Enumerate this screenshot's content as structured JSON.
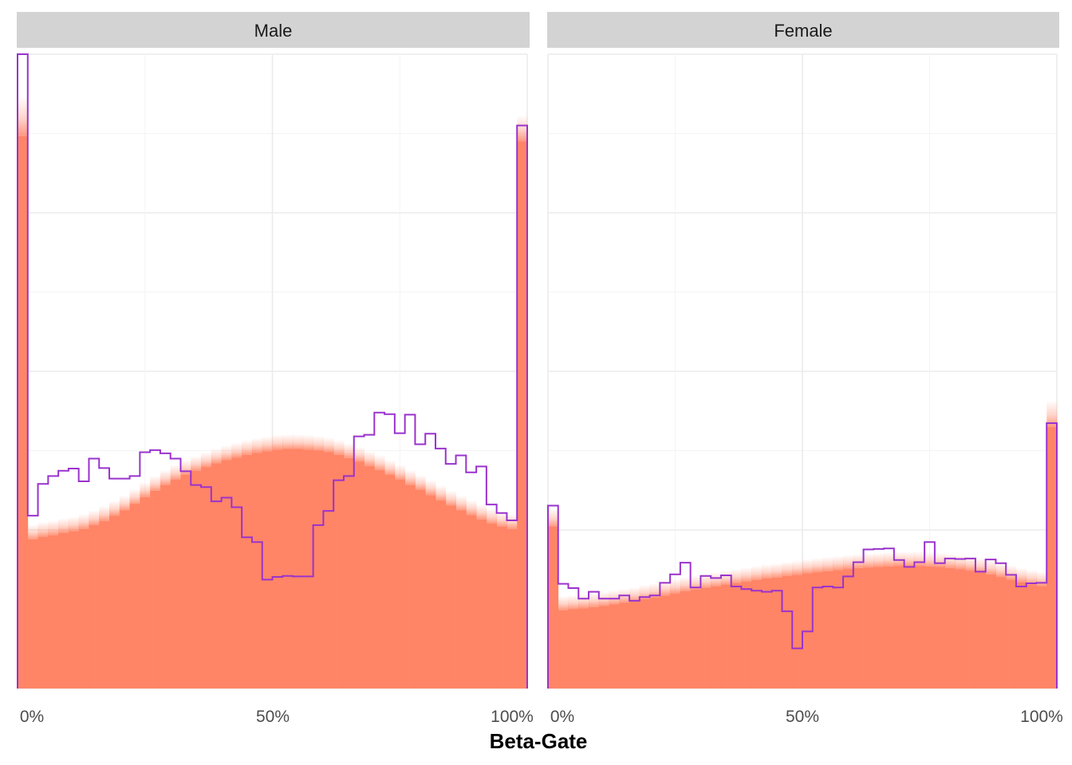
{
  "colors": {
    "strip_bg": "#d3d3d3",
    "grid_major": "#ebebeb",
    "grid_minor": "#f4f4f4",
    "band_fill": "#ff8566",
    "observed_line": "#9a32cd"
  },
  "chart_data": {
    "type": "area",
    "xlabel": "Beta-Gate",
    "ylabel": "",
    "x_tick_labels": [
      "0%",
      "50%",
      "100%"
    ],
    "xlim": [
      0,
      100
    ],
    "ylim": [
      0,
      0.12
    ],
    "grid": true,
    "legend": "none",
    "bins": 50,
    "bin_width": 2,
    "panels": [
      {
        "label": "Male",
        "observed": [
          0.12,
          0.0327,
          0.0387,
          0.0402,
          0.0412,
          0.0416,
          0.0392,
          0.0435,
          0.0417,
          0.0397,
          0.0397,
          0.0402,
          0.0447,
          0.0451,
          0.0445,
          0.0435,
          0.0411,
          0.0385,
          0.0381,
          0.0354,
          0.0361,
          0.0343,
          0.0286,
          0.0277,
          0.0206,
          0.0211,
          0.0213,
          0.0212,
          0.0212,
          0.0309,
          0.0336,
          0.0394,
          0.0402,
          0.0477,
          0.048,
          0.0522,
          0.0519,
          0.0483,
          0.0518,
          0.0462,
          0.0482,
          0.0454,
          0.0425,
          0.0441,
          0.0409,
          0.042,
          0.0348,
          0.0332,
          0.0318,
          0.1065
        ],
        "band_top": [
          0.112,
          0.031,
          0.0315,
          0.0318,
          0.0322,
          0.0325,
          0.033,
          0.0337,
          0.0345,
          0.0355,
          0.0365,
          0.0377,
          0.039,
          0.0402,
          0.0413,
          0.0423,
          0.0432,
          0.044,
          0.0447,
          0.0454,
          0.046,
          0.0465,
          0.047,
          0.0474,
          0.0477,
          0.048,
          0.0481,
          0.0481,
          0.048,
          0.0478,
          0.0475,
          0.047,
          0.0464,
          0.0457,
          0.0449,
          0.0441,
          0.0432,
          0.0423,
          0.0413,
          0.0404,
          0.0394,
          0.0384,
          0.0374,
          0.0365,
          0.0356,
          0.0348,
          0.034,
          0.0334,
          0.033,
          0.1085
        ],
        "band_mid": [
          0.1095,
          0.0296,
          0.0301,
          0.0304,
          0.0308,
          0.0311,
          0.0316,
          0.0323,
          0.0331,
          0.0341,
          0.0351,
          0.0363,
          0.0376,
          0.0388,
          0.0399,
          0.0409,
          0.0418,
          0.0426,
          0.0433,
          0.044,
          0.0446,
          0.0451,
          0.0456,
          0.046,
          0.0463,
          0.0466,
          0.0467,
          0.0467,
          0.0466,
          0.0464,
          0.0461,
          0.0456,
          0.045,
          0.0443,
          0.0435,
          0.0427,
          0.0418,
          0.0409,
          0.0399,
          0.039,
          0.038,
          0.037,
          0.036,
          0.0351,
          0.0342,
          0.0334,
          0.0326,
          0.032,
          0.0316,
          0.1065
        ],
        "band_bottom": [
          0.1045,
          0.0282,
          0.0287,
          0.029,
          0.0294,
          0.0297,
          0.0302,
          0.0309,
          0.0317,
          0.0327,
          0.0337,
          0.0349,
          0.0362,
          0.0374,
          0.0385,
          0.0395,
          0.0404,
          0.0412,
          0.0419,
          0.0426,
          0.0432,
          0.0437,
          0.0442,
          0.0446,
          0.0449,
          0.0452,
          0.0453,
          0.0453,
          0.0452,
          0.045,
          0.0447,
          0.0442,
          0.0436,
          0.0429,
          0.0421,
          0.0413,
          0.0404,
          0.0395,
          0.0385,
          0.0376,
          0.0366,
          0.0356,
          0.0346,
          0.0337,
          0.0328,
          0.032,
          0.0312,
          0.0306,
          0.0302,
          0.1035
        ]
      },
      {
        "label": "Female",
        "observed": [
          0.0346,
          0.0198,
          0.019,
          0.017,
          0.0183,
          0.017,
          0.017,
          0.0176,
          0.0166,
          0.0173,
          0.0176,
          0.02,
          0.0216,
          0.0238,
          0.0191,
          0.0213,
          0.0209,
          0.0214,
          0.0193,
          0.0188,
          0.0185,
          0.0183,
          0.0185,
          0.0146,
          0.0076,
          0.0108,
          0.0191,
          0.0193,
          0.0191,
          0.0212,
          0.0239,
          0.0263,
          0.0264,
          0.0265,
          0.0243,
          0.023,
          0.0239,
          0.0277,
          0.0237,
          0.0246,
          0.0245,
          0.0246,
          0.0221,
          0.0244,
          0.0237,
          0.0215,
          0.0193,
          0.0199,
          0.02,
          0.0502
        ],
        "band_top": [
          0.034,
          0.0175,
          0.0177,
          0.0179,
          0.0181,
          0.0183,
          0.0186,
          0.0189,
          0.0192,
          0.0196,
          0.0199,
          0.0203,
          0.0207,
          0.0211,
          0.0214,
          0.0217,
          0.022,
          0.0223,
          0.0226,
          0.0229,
          0.0232,
          0.0235,
          0.0237,
          0.024,
          0.0242,
          0.0245,
          0.0247,
          0.0249,
          0.0251,
          0.0253,
          0.0255,
          0.0256,
          0.0257,
          0.0258,
          0.0259,
          0.0259,
          0.0259,
          0.0258,
          0.0257,
          0.0255,
          0.0253,
          0.025,
          0.0247,
          0.0243,
          0.0238,
          0.0233,
          0.0228,
          0.0224,
          0.0221,
          0.0545
        ],
        "band_mid": [
          0.0326,
          0.0162,
          0.0164,
          0.0166,
          0.0168,
          0.017,
          0.0173,
          0.0176,
          0.0179,
          0.0183,
          0.0186,
          0.019,
          0.0194,
          0.0198,
          0.0201,
          0.0204,
          0.0207,
          0.021,
          0.0213,
          0.0216,
          0.0219,
          0.0222,
          0.0224,
          0.0227,
          0.0229,
          0.0232,
          0.0234,
          0.0236,
          0.0238,
          0.024,
          0.0242,
          0.0243,
          0.0244,
          0.0245,
          0.0246,
          0.0246,
          0.0246,
          0.0245,
          0.0244,
          0.0242,
          0.024,
          0.0237,
          0.0234,
          0.023,
          0.0225,
          0.022,
          0.0215,
          0.0211,
          0.0208,
          0.0525
        ],
        "band_bottom": [
          0.0306,
          0.0148,
          0.015,
          0.0152,
          0.0154,
          0.0156,
          0.0159,
          0.0162,
          0.0165,
          0.0169,
          0.0172,
          0.0176,
          0.018,
          0.0184,
          0.0187,
          0.019,
          0.0193,
          0.0196,
          0.0199,
          0.0202,
          0.0205,
          0.0208,
          0.021,
          0.0213,
          0.0215,
          0.0218,
          0.022,
          0.0222,
          0.0224,
          0.0226,
          0.0228,
          0.0229,
          0.023,
          0.0231,
          0.0232,
          0.0232,
          0.0232,
          0.0231,
          0.023,
          0.0228,
          0.0226,
          0.0223,
          0.022,
          0.0216,
          0.0211,
          0.0206,
          0.0201,
          0.0197,
          0.0194,
          0.0495
        ]
      }
    ]
  }
}
